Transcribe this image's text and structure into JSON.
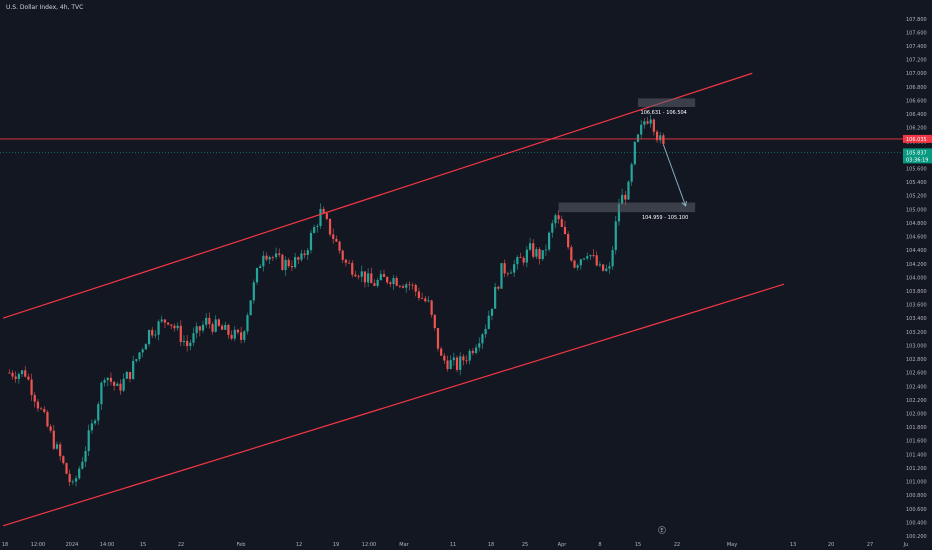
{
  "header": {
    "title": "U.S. Dollar Index, 4h, TVC"
  },
  "colors": {
    "background": "#131722",
    "bull": "#26a69a",
    "bear": "#ef5350",
    "channel": "#f23645",
    "resistance_line": "#f23645",
    "current_line": "#089981",
    "zone": "#5d606b",
    "arrow": "#8fb5c8",
    "axis_text": "#b2b5be"
  },
  "chart_data": {
    "type": "candlestick",
    "symbol": "U.S. Dollar Index",
    "interval": "4h",
    "source": "TVC",
    "ylim": [
      100.2,
      107.9
    ],
    "y_ticks": [
      "107.800",
      "107.600",
      "107.400",
      "107.200",
      "107.000",
      "106.800",
      "106.600",
      "106.400",
      "106.200",
      "106.000",
      "105.800",
      "105.600",
      "105.400",
      "105.200",
      "105.000",
      "104.800",
      "104.600",
      "104.400",
      "104.200",
      "104.000",
      "103.800",
      "103.600",
      "103.400",
      "103.200",
      "103.000",
      "102.800",
      "102.600",
      "102.400",
      "102.200",
      "102.000",
      "101.800",
      "101.600",
      "101.400",
      "101.200",
      "101.000",
      "100.800",
      "100.600",
      "100.400",
      "100.200"
    ],
    "x_ticks": [
      "18",
      "12:00",
      "2024",
      "14:00",
      "15",
      "22",
      "Feb",
      "12",
      "19",
      "12:00",
      "Mar",
      "11",
      "18",
      "25",
      "Apr",
      "8",
      "15",
      "22",
      "May",
      "13",
      "20",
      "27",
      "Ju"
    ],
    "price_path": [
      {
        "x": 0.5,
        "y": 102.6
      },
      {
        "x": 3.5,
        "y": 102.6
      },
      {
        "x": 7.0,
        "y": 101.8
      },
      {
        "x": 11.0,
        "y": 100.9
      },
      {
        "x": 14.0,
        "y": 101.8
      },
      {
        "x": 16.0,
        "y": 102.6
      },
      {
        "x": 18.0,
        "y": 102.35
      },
      {
        "x": 20.0,
        "y": 102.6
      },
      {
        "x": 23.0,
        "y": 103.2
      },
      {
        "x": 26.0,
        "y": 103.4
      },
      {
        "x": 29.0,
        "y": 103.0
      },
      {
        "x": 32.0,
        "y": 103.35
      },
      {
        "x": 35.0,
        "y": 103.2
      },
      {
        "x": 37.5,
        "y": 103.1
      },
      {
        "x": 39.0,
        "y": 103.7
      },
      {
        "x": 41.0,
        "y": 104.4
      },
      {
        "x": 44.0,
        "y": 104.2
      },
      {
        "x": 47.0,
        "y": 104.25
      },
      {
        "x": 50.0,
        "y": 104.95
      },
      {
        "x": 52.0,
        "y": 104.6
      },
      {
        "x": 54.0,
        "y": 104.2
      },
      {
        "x": 56.0,
        "y": 104.1
      },
      {
        "x": 58.0,
        "y": 103.9
      },
      {
        "x": 61.0,
        "y": 104.0
      },
      {
        "x": 64.0,
        "y": 103.9
      },
      {
        "x": 67.0,
        "y": 103.6
      },
      {
        "x": 69.0,
        "y": 102.8
      },
      {
        "x": 71.5,
        "y": 102.7
      },
      {
        "x": 73.5,
        "y": 102.9
      },
      {
        "x": 76.0,
        "y": 103.3
      },
      {
        "x": 78.5,
        "y": 104.1
      },
      {
        "x": 81.0,
        "y": 104.2
      },
      {
        "x": 83.0,
        "y": 104.4
      },
      {
        "x": 85.0,
        "y": 104.3
      },
      {
        "x": 87.0,
        "y": 104.9
      },
      {
        "x": 88.0,
        "y": 104.7
      },
      {
        "x": 90.0,
        "y": 104.2
      },
      {
        "x": 92.0,
        "y": 104.4
      },
      {
        "x": 94.0,
        "y": 104.1
      },
      {
        "x": 95.5,
        "y": 104.1
      },
      {
        "x": 97.0,
        "y": 105.1
      },
      {
        "x": 98.5,
        "y": 105.3
      },
      {
        "x": 99.5,
        "y": 105.9
      },
      {
        "x": 101.0,
        "y": 106.3
      },
      {
        "x": 102.0,
        "y": 106.4
      },
      {
        "x": 103.0,
        "y": 106.1
      },
      {
        "x": 104.0,
        "y": 105.9
      }
    ],
    "channel": {
      "upper": [
        {
          "x": 0,
          "y": 103.4
        },
        {
          "x": 118.0,
          "y": 107.0
        }
      ],
      "lower": [
        {
          "x": 0,
          "y": 100.35
        },
        {
          "x": 123.0,
          "y": 103.9
        }
      ]
    },
    "resistance_level": 106.035,
    "current_price": 105.837,
    "zones": [
      {
        "label": "106.631 - 106.504",
        "x_start": 100.0,
        "x_end": 109.0,
        "y_low": 106.504,
        "y_high": 106.631
      },
      {
        "label": "104.959 - 105.100",
        "x_start": 87.5,
        "x_end": 109.0,
        "y_low": 104.959,
        "y_high": 105.1
      }
    ],
    "projection": [
      {
        "x": 104.0,
        "y": 105.95
      },
      {
        "x": 107.5,
        "y": 105.05
      }
    ],
    "price_badges": [
      {
        "price": "106.035",
        "kind": "resistance"
      },
      {
        "price": "105.837",
        "time": "03:36:19",
        "kind": "current"
      }
    ],
    "footer_marker": "E"
  }
}
